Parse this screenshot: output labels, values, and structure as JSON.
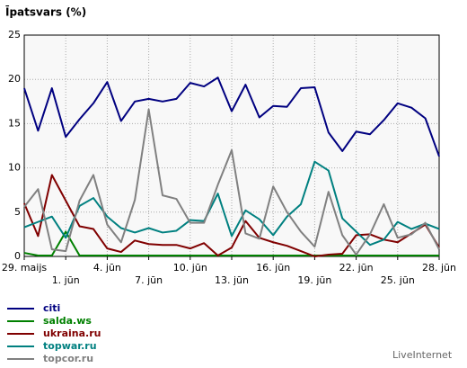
{
  "chart_data": {
    "type": "line",
    "title": "Īpatsvars (%)",
    "categories": [
      "29. maijs",
      null,
      null,
      "1. jūn",
      null,
      null,
      "4. jūn",
      null,
      null,
      "7. jūn",
      null,
      null,
      "10. jūn",
      null,
      null,
      "13. jūn",
      null,
      null,
      "16. jūn",
      null,
      null,
      "19. jūn",
      null,
      null,
      "22. jūn",
      null,
      null,
      "25. jūn",
      null,
      null,
      "28. jūn"
    ],
    "series": [
      {
        "name": "citi",
        "color": "#000080",
        "values": [
          19,
          14.2,
          19,
          13.5,
          15.5,
          17.3,
          19.7,
          15.3,
          17.5,
          17.8,
          17.5,
          17.8,
          19.6,
          19.2,
          20.2,
          16.4,
          19.4,
          15.7,
          17,
          16.9,
          19,
          19.1,
          14,
          11.9,
          14.1,
          13.8,
          15.4,
          17.3,
          16.8,
          15.6,
          11.3
        ]
      },
      {
        "name": "salda.ws",
        "color": "#008000",
        "values": [
          0.4,
          0.1,
          0.1,
          2.8,
          0.1,
          0.1,
          0.1,
          0.1,
          0.1,
          0.1,
          0.1,
          0.1,
          0.1,
          0.1,
          0.1,
          0.1,
          0.1,
          0.1,
          0.1,
          0.1,
          0.1,
          0.1,
          0.1,
          0.1,
          0.1,
          0.1,
          0.1,
          0.1,
          0.1,
          0.1,
          0.1
        ]
      },
      {
        "name": "ukraina.ru",
        "color": "#800000",
        "values": [
          6,
          2.3,
          9.2,
          6.3,
          3.4,
          3.1,
          0.9,
          0.5,
          1.8,
          1.4,
          1.3,
          1.3,
          0.9,
          1.5,
          0.1,
          1.0,
          4.0,
          2.1,
          1.6,
          1.2,
          0.6,
          0,
          0.2,
          0.3,
          2.4,
          2.5,
          1.9,
          1.6,
          2.6,
          3.6,
          1.0
        ]
      },
      {
        "name": "topwar.ru",
        "color": "#008080",
        "values": [
          3.3,
          3.9,
          4.5,
          2.1,
          5.7,
          6.6,
          4.5,
          3.2,
          2.7,
          3.2,
          2.7,
          2.9,
          4.1,
          4.0,
          7.1,
          2.3,
          5.2,
          4.2,
          2.4,
          4.5,
          5.9,
          10.7,
          9.7,
          4.3,
          2.8,
          1.3,
          1.9,
          3.9,
          3.1,
          3.7,
          3.1
        ]
      },
      {
        "name": "topcor.ru",
        "color": "#808080",
        "values": [
          5.6,
          7.6,
          0.8,
          0.6,
          6.3,
          9.2,
          3.6,
          1.6,
          6.4,
          16.6,
          6.9,
          6.5,
          3.8,
          3.8,
          8.1,
          12.0,
          2.6,
          2.0,
          7.9,
          5.0,
          2.8,
          1.1,
          7.3,
          2.4,
          0.2,
          2.5,
          5.9,
          2.1,
          2.5,
          3.8,
          0.8
        ]
      }
    ],
    "ylim": [
      0,
      25
    ],
    "yticks": [
      0,
      5,
      10,
      15,
      20,
      25
    ],
    "grid": true,
    "source": "LiveInternet"
  }
}
